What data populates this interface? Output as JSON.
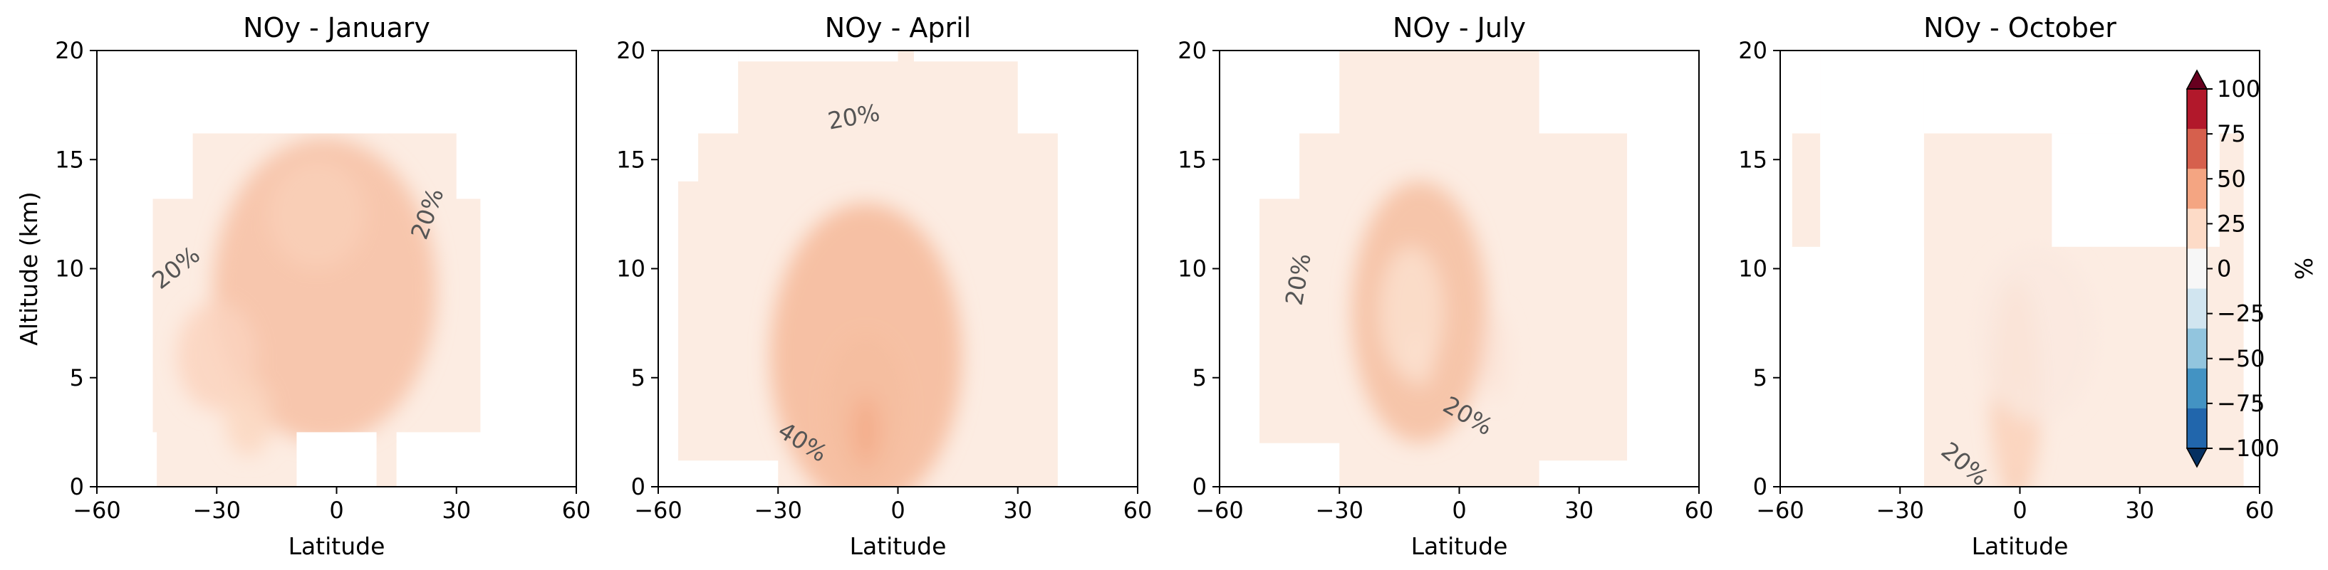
{
  "chart_data": {
    "type": "heatmap",
    "x_name": "latitude",
    "y_name": "altitude",
    "panels": [
      {
        "title": "NOy - January",
        "xlabel": "Latitude",
        "ylabel": "Altitude (km)",
        "xlim": [
          -60,
          60
        ],
        "ylim": [
          0,
          20
        ],
        "xticks": [
          "−60",
          "−30",
          "0",
          "30",
          "60"
        ],
        "yticks": [
          "0",
          "5",
          "10",
          "15",
          "20"
        ],
        "contour_labels": [
          {
            "text": "20%",
            "x": -40,
            "y": 10,
            "rot": -38
          },
          {
            "text": "20%",
            "x": 23,
            "y": 12.5,
            "rot": -70
          }
        ],
        "blobs": [
          {
            "x": -3,
            "y": 9,
            "sx": 28,
            "sy": 7,
            "v": 24
          },
          {
            "x": -30,
            "y": 6,
            "sx": 10,
            "sy": 2.5,
            "v": 15
          },
          {
            "x": -22,
            "y": 3.2,
            "sx": 6,
            "sy": 1.8,
            "v": 14
          },
          {
            "x": -5,
            "y": 12.5,
            "sx": 12,
            "sy": 2.5,
            "v": 17
          }
        ],
        "mask_boxes": [
          {
            "x": [
              -60,
              -46
            ],
            "y": [
              0,
              20
            ]
          },
          {
            "x": [
              36,
              60
            ],
            "y": [
              0,
              20
            ]
          },
          {
            "x": [
              -60,
              60
            ],
            "y": [
              16.2,
              20
            ]
          },
          {
            "x": [
              -60,
              -36
            ],
            "y": [
              13.2,
              20
            ]
          },
          {
            "x": [
              30,
              60
            ],
            "y": [
              13.2,
              20
            ]
          },
          {
            "x": [
              -60,
              -45
            ],
            "y": [
              0,
              2.5
            ]
          },
          {
            "x": [
              -10,
              10
            ],
            "y": [
              0,
              2.5
            ]
          },
          {
            "x": [
              15,
              60
            ],
            "y": [
              0,
              2.5
            ]
          }
        ]
      },
      {
        "title": "NOy - April",
        "xlabel": "Latitude",
        "ylabel": "",
        "xlim": [
          -60,
          60
        ],
        "ylim": [
          0,
          20
        ],
        "xticks": [
          "−60",
          "−30",
          "0",
          "30",
          "60"
        ],
        "yticks": [
          "0",
          "5",
          "10",
          "15",
          "20"
        ],
        "contour_labels": [
          {
            "text": "20%",
            "x": -11,
            "y": 16.9,
            "rot": -10
          },
          {
            "text": "40%",
            "x": -24,
            "y": 2,
            "rot": 32
          }
        ],
        "blobs": [
          {
            "x": -8,
            "y": 6,
            "sx": 24,
            "sy": 7,
            "v": 28
          },
          {
            "x": -8,
            "y": 3.5,
            "sx": 10,
            "sy": 3.5,
            "v": 25
          },
          {
            "x": -8,
            "y": 2.6,
            "sx": 3.5,
            "sy": 1.6,
            "v": 34
          }
        ],
        "mask_boxes": [
          {
            "x": [
              -60,
              -55
            ],
            "y": [
              0,
              20
            ]
          },
          {
            "x": [
              40,
              60
            ],
            "y": [
              0,
              20
            ]
          },
          {
            "x": [
              -60,
              -40
            ],
            "y": [
              16.2,
              20
            ]
          },
          {
            "x": [
              -60,
              -50
            ],
            "y": [
              14,
              20
            ]
          },
          {
            "x": [
              -40,
              0
            ],
            "y": [
              19.5,
              20
            ]
          },
          {
            "x": [
              4,
              60
            ],
            "y": [
              19.5,
              20
            ]
          },
          {
            "x": [
              30,
              60
            ],
            "y": [
              16.2,
              20
            ]
          },
          {
            "x": [
              -60,
              -30
            ],
            "y": [
              0,
              1.2
            ]
          }
        ]
      },
      {
        "title": "NOy - July",
        "xlabel": "Latitude",
        "ylabel": "",
        "xlim": [
          -60,
          60
        ],
        "ylim": [
          0,
          20
        ],
        "xticks": [
          "−60",
          "−30",
          "0",
          "30",
          "60"
        ],
        "yticks": [
          "0",
          "5",
          "10",
          "15",
          "20"
        ],
        "contour_labels": [
          {
            "text": "20%",
            "x": -40,
            "y": 9.5,
            "rot": -80
          },
          {
            "text": "20%",
            "x": 2,
            "y": 3.2,
            "rot": 30
          }
        ],
        "blobs": [
          {
            "x": -10,
            "y": 8,
            "sx": 17,
            "sy": 6,
            "v": 25
          },
          {
            "x": -12,
            "y": 8,
            "sx": 8,
            "sy": 3,
            "v": 10
          },
          {
            "x": -10,
            "y": 5.8,
            "sx": 3.5,
            "sy": 1.2,
            "v": 10
          },
          {
            "x": 9,
            "y": 6,
            "sx": 3,
            "sy": 2,
            "v": 8
          }
        ],
        "mask_boxes": [
          {
            "x": [
              -60,
              -50
            ],
            "y": [
              0,
              20
            ]
          },
          {
            "x": [
              42,
              60
            ],
            "y": [
              0,
              20
            ]
          },
          {
            "x": [
              -60,
              -30
            ],
            "y": [
              16.2,
              20
            ]
          },
          {
            "x": [
              20,
              60
            ],
            "y": [
              16.2,
              20
            ]
          },
          {
            "x": [
              -60,
              -40
            ],
            "y": [
              13.2,
              20
            ]
          },
          {
            "x": [
              -60,
              -30
            ],
            "y": [
              0,
              2
            ]
          },
          {
            "x": [
              20,
              60
            ],
            "y": [
              0,
              1.2
            ]
          }
        ]
      },
      {
        "title": "NOy - October",
        "xlabel": "Latitude",
        "ylabel": "",
        "xlim": [
          -60,
          60
        ],
        "ylim": [
          0,
          20
        ],
        "xticks": [
          "−60",
          "−30",
          "0",
          "30",
          "60"
        ],
        "yticks": [
          "0",
          "5",
          "10",
          "15",
          "20"
        ],
        "contour_labels": [
          {
            "text": "20%",
            "x": -14,
            "y": 1,
            "rot": 40
          }
        ],
        "blobs": [
          {
            "x": -1,
            "y": 4.5,
            "sx": 6,
            "sy": 5,
            "v": 22
          },
          {
            "x": -1,
            "y": 2.5,
            "sx": 3,
            "sy": 2.2,
            "v": 12
          },
          {
            "x": 4,
            "y": 7,
            "sx": 15,
            "sy": 4,
            "v": 6
          }
        ],
        "mask_boxes": [
          {
            "x": [
              -60,
              -57
            ],
            "y": [
              0,
              20
            ]
          },
          {
            "x": [
              56,
              60
            ],
            "y": [
              0,
              20
            ]
          },
          {
            "x": [
              -60,
              -24
            ],
            "y": [
              0,
              11
            ]
          },
          {
            "x": [
              -50,
              -24
            ],
            "y": [
              0,
              20
            ]
          },
          {
            "x": [
              -60,
              -50
            ],
            "y": [
              16.2,
              20
            ]
          },
          {
            "x": [
              -24,
              60
            ],
            "y": [
              16.2,
              20
            ]
          },
          {
            "x": [
              8,
              50
            ],
            "y": [
              11,
              16.2
            ]
          }
        ]
      }
    ],
    "colorbar": {
      "label": "%",
      "ticks": [
        "100",
        "75",
        "50",
        "25",
        "0",
        "−25",
        "−50",
        "−75",
        "−100"
      ],
      "values": [
        100,
        75,
        50,
        25,
        0,
        -25,
        -50,
        -75,
        -100
      ],
      "colors_top_to_bottom": [
        "#67001f",
        "#b2182b",
        "#d6604d",
        "#f4a582",
        "#fddbc7",
        "#f7f7f7",
        "#d1e5f0",
        "#92c5de",
        "#4393c3",
        "#2166ac",
        "#053061"
      ]
    }
  }
}
